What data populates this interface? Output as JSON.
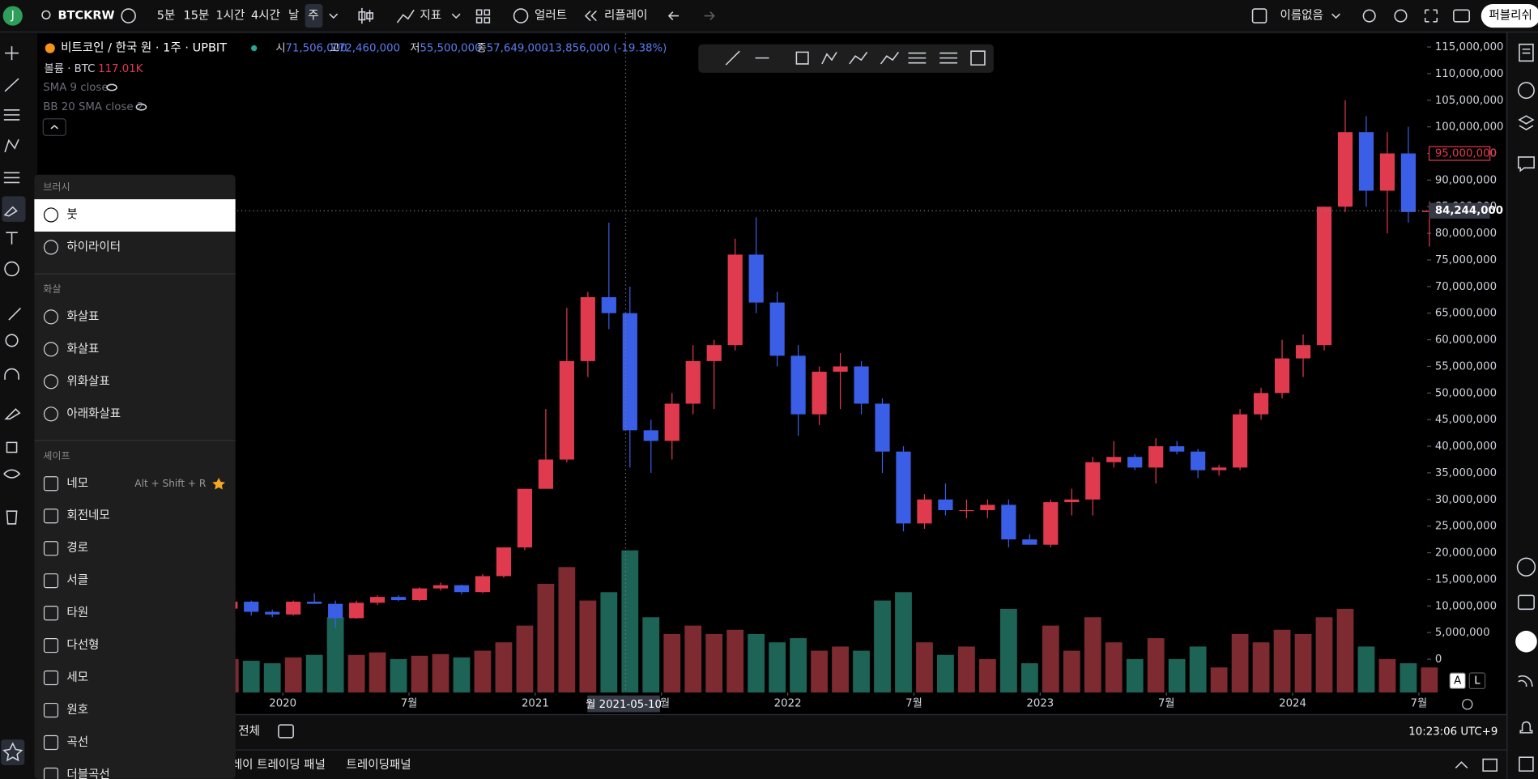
{
  "toolbar": {
    "avatar": "J",
    "symbol": "BTCKRW",
    "intervals": [
      "5분",
      "15분",
      "1시간",
      "4시간",
      "날",
      "주"
    ],
    "indicators": "지표",
    "alerts": "얼러트",
    "replay": "리플레이",
    "layout": "이름없음",
    "publish": "퍼블리쉬"
  },
  "legend": {
    "title": "비트코인 / 한국 원 · 1주 · UPBIT",
    "o_label": "시",
    "o": "71,506,000",
    "h_label": "고",
    "h": "72,460,000",
    "l_label": "저",
    "l": "55,500,000",
    "c_label": "종",
    "c": "57,649,000",
    "change": "-13,856,000 (-19.38%)",
    "volume": "볼륨 · BTC",
    "volume_value": "117.01K",
    "sma": "SMA 9 close",
    "bb": "BB 20 SMA close 2"
  },
  "menu": {
    "sections": [
      {
        "title": "브러시",
        "items": [
          "붓",
          "하이라이터"
        ]
      },
      {
        "title": "화살",
        "items": [
          "화살표",
          "화살표",
          "위화살표",
          "아래화살표"
        ]
      },
      {
        "title": "셰이프",
        "items": [
          "네모",
          "회전네모",
          "경로",
          "서클",
          "타원",
          "다선형",
          "세모",
          "원호",
          "곡선",
          "더블곡선"
        ]
      }
    ],
    "shortcut": "Alt + Shift + R"
  },
  "chart_data": {
    "type": "candlestick",
    "x": [
      "2019-10",
      "2019-11",
      "2019-12",
      "2020-01",
      "2020-02",
      "2020-03",
      "2020-04",
      "2020-05",
      "2020-06",
      "2020-07",
      "2020-08",
      "2020-09",
      "2020-10",
      "2020-11",
      "2020-12",
      "2021-01",
      "2021-02",
      "2021-03",
      "2021-04",
      "2021-05",
      "2021-06",
      "2021-07",
      "2021-08",
      "2021-09",
      "2021-10",
      "2021-11",
      "2021-12",
      "2022-01",
      "2022-02",
      "2022-03",
      "2022-04",
      "2022-05",
      "2022-06",
      "2022-07",
      "2022-08",
      "2022-09",
      "2022-10",
      "2022-11",
      "2022-12",
      "2023-01",
      "2023-02",
      "2023-03",
      "2023-04",
      "2023-05",
      "2023-06",
      "2023-07",
      "2023-08",
      "2023-09",
      "2023-10",
      "2023-11",
      "2023-12",
      "2024-01",
      "2024-02",
      "2024-03",
      "2024-04",
      "2024-05",
      "2024-06",
      "2024-07"
    ],
    "open": [
      9500000,
      10800000,
      8900000,
      8400000,
      10800000,
      10400000,
      7700000,
      10600000,
      11700000,
      11100000,
      13300000,
      13900000,
      12600000,
      15600000,
      21000000,
      32000000,
      37500000,
      56000000,
      68000000,
      65000000,
      43000000,
      41000000,
      48000000,
      56000000,
      59000000,
      76000000,
      67000000,
      57000000,
      46000000,
      54000000,
      55000000,
      48000000,
      39000000,
      25500000,
      30000000,
      28000000,
      28000000,
      29000000,
      22500000,
      21500000,
      29500000,
      30000000,
      37000000,
      38000000,
      36000000,
      40000000,
      39000000,
      35500000,
      36000000,
      46000000,
      50000000,
      56500000,
      59000000,
      85000000,
      99000000,
      88000000,
      95000000,
      84000000
    ],
    "high": [
      11600000,
      11000000,
      9300000,
      11000000,
      12400000,
      11000000,
      11000000,
      12000000,
      12000000,
      13500000,
      14400000,
      14000000,
      16000000,
      21000000,
      32000000,
      47000000,
      66000000,
      69000000,
      82000000,
      70000000,
      45000000,
      50000000,
      59000000,
      60000000,
      79000000,
      83000000,
      69000000,
      59000000,
      55000000,
      57500000,
      56000000,
      49000000,
      40000000,
      31000000,
      33000000,
      30000000,
      30000000,
      30000000,
      23500000,
      30000000,
      32000000,
      38000000,
      41000000,
      38500000,
      41500000,
      41000000,
      39500000,
      36500000,
      47000000,
      51000000,
      60000000,
      61000000,
      85000000,
      105000000,
      102000000,
      99000000,
      100000000,
      86000000
    ],
    "low": [
      8900000,
      8200000,
      7900000,
      8200000,
      10400000,
      5900000,
      7600000,
      10200000,
      10900000,
      10900000,
      12900000,
      12200000,
      12400000,
      15300000,
      20500000,
      32000000,
      37000000,
      53000000,
      62000000,
      36000000,
      35000000,
      37500000,
      46000000,
      47000000,
      58000000,
      65000000,
      55000000,
      42000000,
      44000000,
      47000000,
      46000000,
      35000000,
      24000000,
      24500000,
      27000000,
      26500000,
      26500000,
      21000000,
      21500000,
      21000000,
      27000000,
      27000000,
      36000000,
      35500000,
      33000000,
      38500000,
      34000000,
      34500000,
      35500000,
      45000000,
      49000000,
      53000000,
      58000000,
      84000000,
      85000000,
      80000000,
      82000000,
      77500000
    ],
    "close": [
      10800000,
      8900000,
      8400000,
      10800000,
      10400000,
      7700000,
      10600000,
      11700000,
      11100000,
      13300000,
      13900000,
      12600000,
      15600000,
      21000000,
      32000000,
      37500000,
      56000000,
      68000000,
      65000000,
      43000000,
      41000000,
      48000000,
      56000000,
      59000000,
      76000000,
      67000000,
      57000000,
      46000000,
      54000000,
      55000000,
      48000000,
      39000000,
      25500000,
      30000000,
      28000000,
      28000000,
      29000000,
      22500000,
      21500000,
      29500000,
      30000000,
      37000000,
      38000000,
      36000000,
      40000000,
      39000000,
      35500000,
      36000000,
      46000000,
      50000000,
      56500000,
      59000000,
      85000000,
      99000000,
      88000000,
      95000000,
      84000000,
      84244000
    ],
    "volume": [
      40,
      38,
      35,
      42,
      45,
      90,
      45,
      48,
      40,
      44,
      46,
      42,
      50,
      60,
      80,
      130,
      150,
      110,
      120,
      170,
      90,
      70,
      80,
      70,
      75,
      70,
      60,
      65,
      50,
      55,
      50,
      110,
      120,
      60,
      45,
      55,
      40,
      100,
      35,
      80,
      50,
      90,
      60,
      40,
      65,
      40,
      55,
      30,
      70,
      60,
      75,
      70,
      90,
      100,
      55,
      40,
      35,
      30
    ],
    "up_color": "#e03a4f",
    "down_color": "#3a5fe6",
    "volume_up_color": "#7d2a30",
    "volume_down_color": "#1d6457",
    "xlim": [
      "2019-01-11",
      "2024-07-13"
    ],
    "ylim": [
      -6264000,
      117532000
    ],
    "yticks": [
      0,
      {
        "value": 5000000,
        "label": "5,000,000"
      },
      {
        "value": 10000000,
        "label": "10,000,000"
      },
      {
        "value": 15000000,
        "label": "15,000,000"
      },
      {
        "value": 20000000,
        "label": "20,000,000"
      },
      {
        "value": 25000000,
        "label": "25,000,000"
      },
      {
        "value": 30000000,
        "label": "30,000,000"
      },
      {
        "value": 35000000,
        "label": "35,000,000"
      },
      {
        "value": 40000000,
        "label": "40,000,000"
      },
      {
        "value": 45000000,
        "label": "45,000,000"
      },
      {
        "value": 50000000,
        "label": "50,000,000"
      },
      {
        "value": 55000000,
        "label": "55,000,000"
      },
      {
        "value": 60000000,
        "label": "60,000,000"
      },
      {
        "value": 65000000,
        "label": "65,000,000"
      },
      {
        "value": 70000000,
        "label": "70,000,000"
      },
      {
        "value": 75000000,
        "label": "75,000,000"
      },
      {
        "value": 80000000,
        "label": "80,000,000"
      },
      {
        "value": 85000000,
        "label": "85,000,000"
      },
      {
        "value": 90000000,
        "label": "90,000,000"
      },
      {
        "value": 95000000,
        "label": "95,000,000"
      },
      {
        "value": 100000000,
        "label": "100,000,000"
      },
      {
        "value": 105000000,
        "label": "105,000,000"
      },
      {
        "value": 110000000,
        "label": "110,000,000"
      },
      {
        "value": 115000000,
        "label": "115,000,000"
      }
    ],
    "xticks": [
      {
        "value": "2020-01",
        "label": "2020"
      },
      {
        "value": "2020-07",
        "label": "7월"
      },
      {
        "value": "2021-01",
        "label": "2021"
      },
      {
        "value": "2021-07",
        "label": "7월"
      },
      {
        "value": "2022-01",
        "label": "2022"
      },
      {
        "value": "2022-07",
        "label": "7월"
      },
      {
        "value": "2023-01",
        "label": "2023"
      },
      {
        "value": "2023-07",
        "label": "7월"
      },
      {
        "value": "2024-01",
        "label": "2024"
      },
      {
        "value": "2024-07",
        "label": "7월"
      }
    ],
    "alert_line": {
      "value": 95000000,
      "label": "95,000,000"
    },
    "crosshair": {
      "x": "2021-05-10",
      "x_label": "월 2021-05-10",
      "y": 84244000,
      "y_label": "84,244,000"
    },
    "scale_buttons": [
      "A",
      "L"
    ]
  },
  "bottom": {
    "range": "전체",
    "time": "10:23:06 UTC+9",
    "tabs": [
      "레이 트레이딩 패널",
      "트레이딩패널"
    ]
  }
}
